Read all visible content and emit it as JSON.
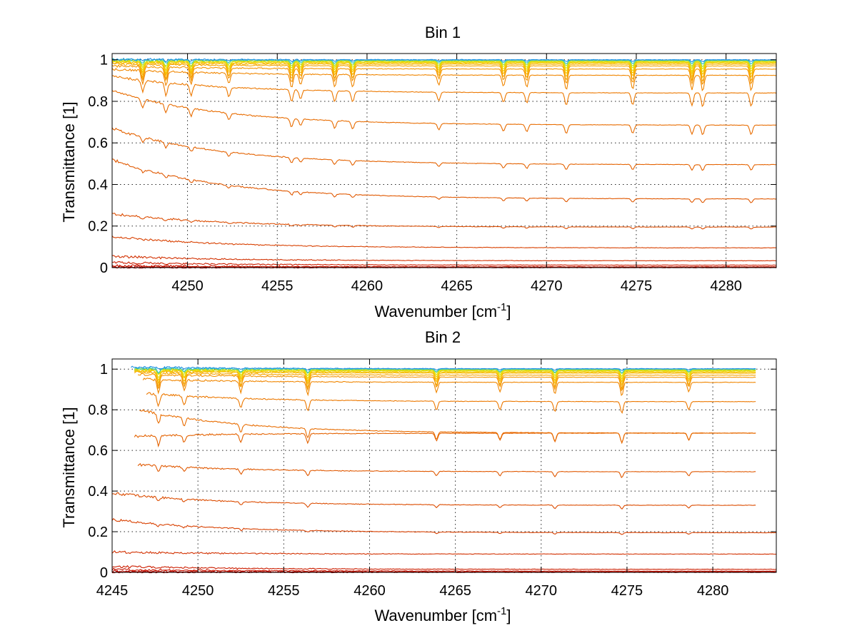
{
  "chart_data": [
    {
      "type": "line",
      "title": "Bin 1",
      "xlabel": "Wavenumber [cm",
      "xlabel_sup": "-1",
      "xlabel_end": "]",
      "ylabel": "Transmittance [1]",
      "xlim": [
        4245.8,
        4282.8
      ],
      "ylim": [
        0,
        1.03
      ],
      "xticks": [
        4250,
        4255,
        4260,
        4265,
        4270,
        4275,
        4280
      ],
      "xtick_labels": [
        "4250",
        "4255",
        "4260",
        "4265",
        "4270",
        "4275",
        "4280"
      ],
      "yticks": [
        0,
        0.2,
        0.4,
        0.6,
        0.8,
        1
      ],
      "ytick_labels": [
        "0",
        "0.2",
        "0.4",
        "0.6",
        "0.8",
        "1"
      ],
      "grid": true,
      "x_range": [
        4245.8,
        4282.8
      ],
      "absorption_lines": [
        4247.5,
        4248.8,
        4250.2,
        4252.3,
        4255.8,
        4256.3,
        4258.2,
        4259.2,
        4264.0,
        4267.6,
        4268.9,
        4271.1,
        4274.8,
        4278.1,
        4278.7,
        4281.4
      ],
      "series": [
        {
          "color": "#b70000",
          "start": 0.0,
          "end": 0.0,
          "depth": 0.0
        },
        {
          "color": "#c00a00",
          "start": 0.004,
          "end": 0.001,
          "depth": 0.0
        },
        {
          "color": "#c61400",
          "start": 0.01,
          "end": 0.004,
          "depth": 0.0
        },
        {
          "color": "#cc1e00",
          "start": 0.025,
          "end": 0.012,
          "depth": 0.0
        },
        {
          "color": "#d23000",
          "start": 0.055,
          "end": 0.033,
          "depth": 0.0
        },
        {
          "color": "#d84000",
          "start": 0.15,
          "end": 0.095,
          "depth": 0.0
        },
        {
          "color": "#dc4c00",
          "start": 0.26,
          "end": 0.195,
          "depth": 0.01
        },
        {
          "color": "#e05800",
          "start": 0.52,
          "end": 0.33,
          "depth": 0.02
        },
        {
          "color": "#e46200",
          "start": 0.67,
          "end": 0.495,
          "depth": 0.03
        },
        {
          "color": "#e86c00",
          "start": 0.85,
          "end": 0.685,
          "depth": 0.05
        },
        {
          "color": "#ec7800",
          "start": 0.92,
          "end": 0.84,
          "depth": 0.07
        },
        {
          "color": "#f08600",
          "start": 0.955,
          "end": 0.925,
          "depth": 0.08
        },
        {
          "color": "#f49400",
          "start": 0.97,
          "end": 0.955,
          "depth": 0.08
        },
        {
          "color": "#f6a400",
          "start": 0.98,
          "end": 0.97,
          "depth": 0.08
        },
        {
          "color": "#f8b400",
          "start": 0.985,
          "end": 0.978,
          "depth": 0.07
        },
        {
          "color": "#f4c400",
          "start": 0.99,
          "end": 0.984,
          "depth": 0.06
        },
        {
          "color": "#ecd400",
          "start": 0.993,
          "end": 0.988,
          "depth": 0.05
        },
        {
          "color": "#dce000",
          "start": 0.995,
          "end": 0.992,
          "depth": 0.04
        },
        {
          "color": "#a8d83a",
          "start": 0.998,
          "end": 0.995,
          "depth": 0.03
        },
        {
          "color": "#2ec8c8",
          "start": 1.0,
          "end": 0.998,
          "depth": 0.02
        },
        {
          "color": "#1e90e0",
          "start": 1.002,
          "end": 1.0,
          "depth": 0.01
        }
      ]
    },
    {
      "type": "line",
      "title": "Bin 2",
      "xlabel": "Wavenumber [cm",
      "xlabel_sup": "-1",
      "xlabel_end": "]",
      "ylabel": "Transmittance [1]",
      "xlim": [
        4245,
        4283.7
      ],
      "ylim": [
        0,
        1.05
      ],
      "xticks": [
        4245,
        4250,
        4255,
        4260,
        4265,
        4270,
        4275,
        4280
      ],
      "xtick_labels": [
        "4245",
        "4250",
        "4255",
        "4260",
        "4265",
        "4270",
        "4275",
        "4280"
      ],
      "yticks": [
        0,
        0.2,
        0.4,
        0.6,
        0.8,
        1
      ],
      "ytick_labels": [
        "0",
        "0.2",
        "0.4",
        "0.6",
        "0.8",
        "1"
      ],
      "grid": true,
      "x_range": [
        4246.3,
        4282.5
      ],
      "absorption_lines": [
        4247.7,
        4249.2,
        4252.5,
        4256.4,
        4263.9,
        4267.6,
        4270.8,
        4274.7,
        4278.6
      ],
      "series": [
        {
          "color": "#b70000",
          "start": 0.0,
          "end": 0.0,
          "depth": 0.0,
          "x_start": 4245.0,
          "x_end": 4283.7
        },
        {
          "color": "#c00a00",
          "start": 0.006,
          "end": 0.002,
          "depth": 0.0,
          "x_start": 4245.0,
          "x_end": 4283.7
        },
        {
          "color": "#c61400",
          "start": 0.015,
          "end": 0.006,
          "depth": 0.0,
          "x_start": 4245.0,
          "x_end": 4283.7
        },
        {
          "color": "#cc1e00",
          "start": 0.03,
          "end": 0.015,
          "depth": 0.0,
          "x_start": 4245.0,
          "x_end": 4283.7
        },
        {
          "color": "#d23000",
          "start": 0.1,
          "end": 0.09,
          "depth": 0.0,
          "x_start": 4245.0,
          "x_end": 4283.7
        },
        {
          "color": "#d84000",
          "start": 0.26,
          "end": 0.195,
          "depth": 0.01,
          "x_start": 4245.0,
          "x_end": 4283.7
        },
        {
          "color": "#dc4c00",
          "start": 0.39,
          "end": 0.33,
          "depth": 0.02,
          "x_start": 4245.0,
          "x_end": 4282.5
        },
        {
          "color": "#e05800",
          "start": 0.53,
          "end": 0.495,
          "depth": 0.03,
          "x_start": 4246.5,
          "x_end": 4282.5
        },
        {
          "color": "#e46200",
          "start": 0.67,
          "end": 0.685,
          "depth": 0.05,
          "x_start": 4246.3,
          "x_end": 4282.5
        },
        {
          "color": "#e86c00",
          "start": 0.8,
          "end": 0.685,
          "depth": 0.05,
          "x_start": 4246.6,
          "x_end": 4282.5
        },
        {
          "color": "#ec7800",
          "start": 0.88,
          "end": 0.84,
          "depth": 0.06,
          "x_start": 4247.0,
          "x_end": 4282.5
        },
        {
          "color": "#f08600",
          "start": 0.95,
          "end": 0.935,
          "depth": 0.07,
          "x_start": 4246.8,
          "x_end": 4282.5
        },
        {
          "color": "#f49400",
          "start": 0.975,
          "end": 0.96,
          "depth": 0.07,
          "x_start": 4246.5,
          "x_end": 4282.5
        },
        {
          "color": "#f6a400",
          "start": 0.985,
          "end": 0.97,
          "depth": 0.07,
          "x_start": 4246.3,
          "x_end": 4282.5
        },
        {
          "color": "#f8b400",
          "start": 0.99,
          "end": 0.98,
          "depth": 0.06,
          "x_start": 4246.3,
          "x_end": 4282.5
        },
        {
          "color": "#f4c400",
          "start": 0.993,
          "end": 0.985,
          "depth": 0.05,
          "x_start": 4246.3,
          "x_end": 4282.5
        },
        {
          "color": "#ecd400",
          "start": 0.996,
          "end": 0.99,
          "depth": 0.04,
          "x_start": 4246.3,
          "x_end": 4282.5
        },
        {
          "color": "#dce000",
          "start": 0.998,
          "end": 0.994,
          "depth": 0.03,
          "x_start": 4246.3,
          "x_end": 4282.5
        },
        {
          "color": "#a8d83a",
          "start": 1.0,
          "end": 0.997,
          "depth": 0.02,
          "x_start": 4246.3,
          "x_end": 4282.5
        },
        {
          "color": "#2ec8c8",
          "start": 1.004,
          "end": 1.0,
          "depth": 0.02,
          "x_start": 4246.3,
          "x_end": 4282.5
        },
        {
          "color": "#1e90e0",
          "start": 1.01,
          "end": 1.002,
          "depth": 0.01,
          "x_start": 4246.1,
          "x_end": 4282.5
        }
      ]
    }
  ]
}
